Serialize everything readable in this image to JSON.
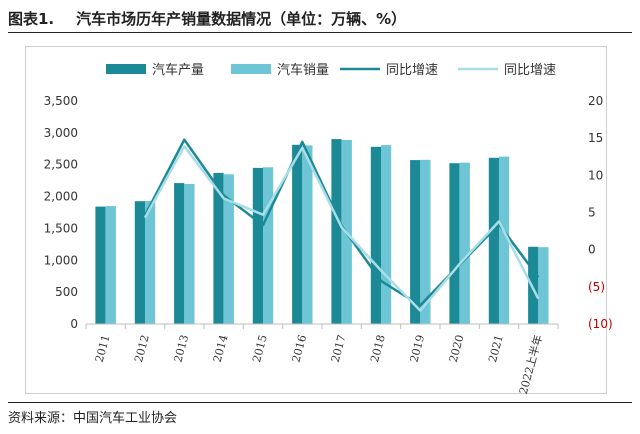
{
  "figure": {
    "number": "图表1.",
    "title": "汽车市场历年产销量数据情况（单位：万辆、%）",
    "source": "资料来源：中国汽车工业协会"
  },
  "colors": {
    "production_bar": "#1b8a96",
    "sales_bar": "#6ec5d6",
    "production_growth_line": "#1b8a96",
    "sales_growth_line": "#a9dde8",
    "negative_tick": "#c00000"
  },
  "chart_data": {
    "type": "bar",
    "categories": [
      "2011",
      "2012",
      "2013",
      "2014",
      "2015",
      "2016",
      "2017",
      "2018",
      "2019",
      "2020",
      "2021",
      "2022上半年"
    ],
    "series": [
      {
        "name": "汽车产量",
        "type": "bar",
        "axis": "left",
        "values": [
          1842,
          1927,
          2212,
          2372,
          2450,
          2812,
          2902,
          2781,
          2572,
          2523,
          2608,
          1212
        ]
      },
      {
        "name": "汽车销量",
        "type": "bar",
        "axis": "left",
        "values": [
          1851,
          1931,
          2198,
          2349,
          2460,
          2803,
          2888,
          2808,
          2577,
          2531,
          2628,
          1206
        ]
      },
      {
        "name": "同比增速",
        "type": "line",
        "axis": "right",
        "values": [
          null,
          4.6,
          14.8,
          7.3,
          3.3,
          14.5,
          3.2,
          -4.2,
          -7.5,
          -2.0,
          3.4,
          -3.7
        ]
      },
      {
        "name": "同比增速",
        "type": "line",
        "axis": "right",
        "values": [
          null,
          4.3,
          13.9,
          6.9,
          4.7,
          13.7,
          3.0,
          -2.8,
          -8.2,
          -1.9,
          3.8,
          -6.6
        ]
      }
    ],
    "ylim_left": [
      0,
      3500
    ],
    "yticks_left": [
      "0",
      "500",
      "1,000",
      "1,500",
      "2,000",
      "2,500",
      "3,000",
      "3,500"
    ],
    "ylim_right": [
      -10,
      20
    ],
    "yticks_right": [
      "(10)",
      "(5)",
      "0",
      "5",
      "10",
      "15",
      "20"
    ],
    "grid": false,
    "legend_position": "top"
  }
}
